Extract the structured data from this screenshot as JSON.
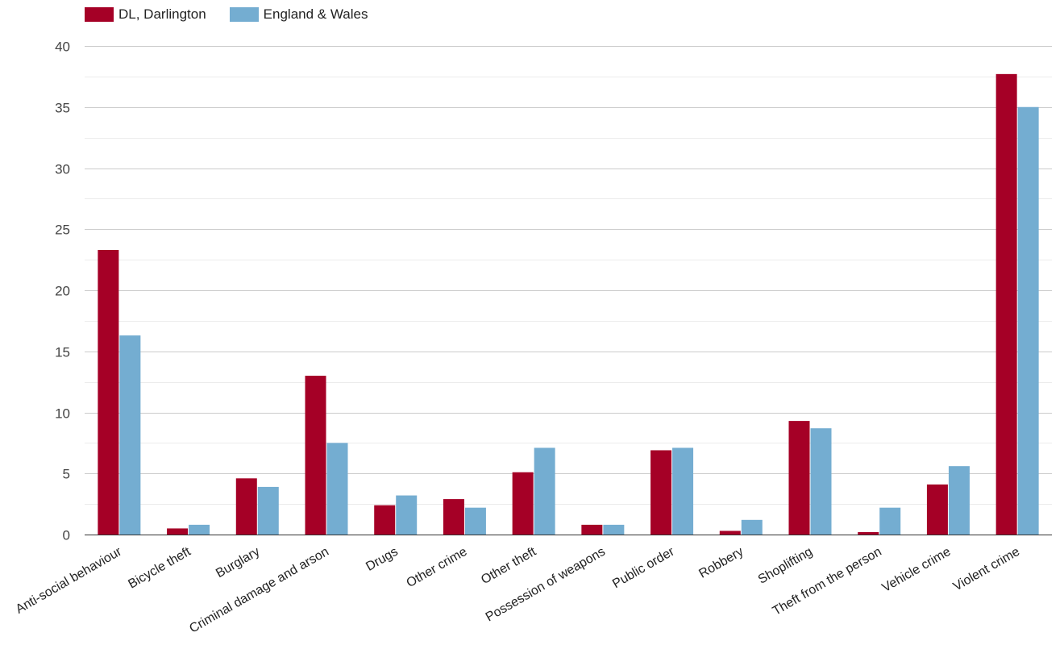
{
  "chart_data": {
    "type": "bar",
    "categories": [
      "Anti-social behaviour",
      "Bicycle theft",
      "Burglary",
      "Criminal damage and arson",
      "Drugs",
      "Other crime",
      "Other theft",
      "Possession of weapons",
      "Public order",
      "Robbery",
      "Shoplifting",
      "Theft from the person",
      "Vehicle crime",
      "Violent crime"
    ],
    "series": [
      {
        "name": "DL, Darlington",
        "color": "#a50026",
        "values": [
          23.3,
          0.5,
          4.6,
          13.0,
          2.4,
          2.9,
          5.1,
          0.8,
          6.9,
          0.3,
          9.3,
          0.2,
          4.1,
          37.7
        ]
      },
      {
        "name": "England & Wales",
        "color": "#74add1",
        "values": [
          16.3,
          0.8,
          3.9,
          7.5,
          3.2,
          2.2,
          7.1,
          0.8,
          7.1,
          1.2,
          8.7,
          2.2,
          5.6,
          35.0
        ]
      }
    ],
    "yticks": [
      0,
      5,
      10,
      15,
      20,
      25,
      30,
      35,
      40
    ],
    "ylim": [
      0,
      40
    ],
    "grid": true,
    "legend": "top-left"
  }
}
